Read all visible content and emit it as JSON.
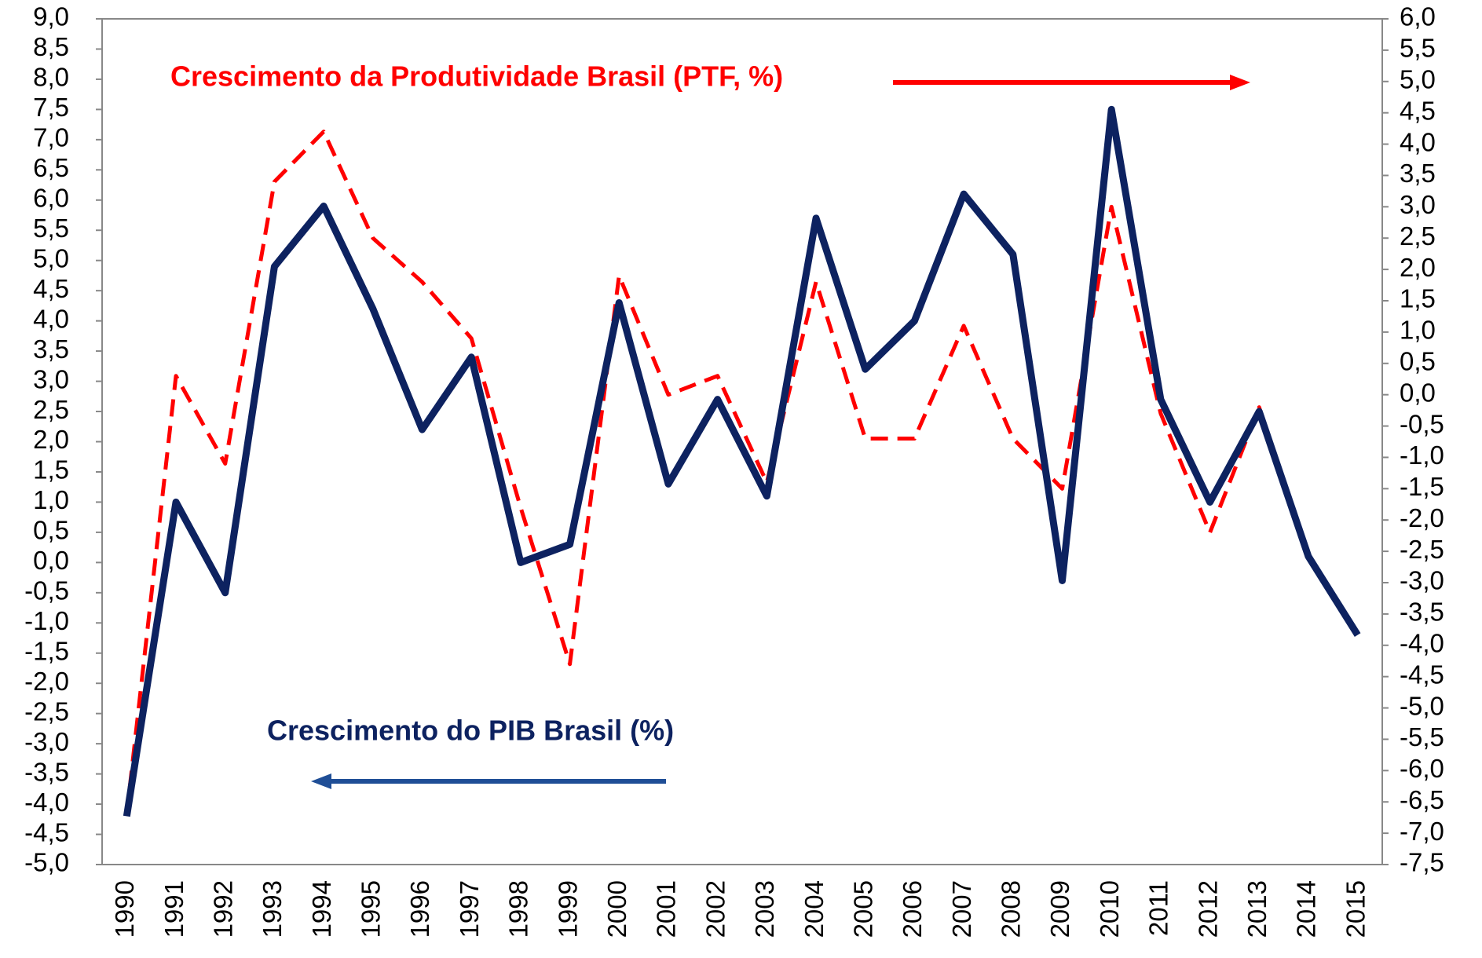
{
  "chart_data": {
    "type": "line",
    "annotations": [
      "Crescimento da Produtividade Brasil (PTF, %)",
      "Crescimento do PIB Brasil (%)"
    ],
    "categories": [
      "1990",
      "1991",
      "1992",
      "1993",
      "1994",
      "1995",
      "1996",
      "1997",
      "1998",
      "1999",
      "2000",
      "2001",
      "2002",
      "2003",
      "2004",
      "2005",
      "2006",
      "2007",
      "2008",
      "2009",
      "2010",
      "2011",
      "2012",
      "2013",
      "2014",
      "2015"
    ],
    "series": [
      {
        "name": "Crescimento do PIB Brasil (%)",
        "color": "#0d2260",
        "axis": "y",
        "dash": false,
        "values": [
          -4.2,
          1.0,
          -0.5,
          4.9,
          5.9,
          4.2,
          2.2,
          3.4,
          0.0,
          0.3,
          4.3,
          1.3,
          2.7,
          1.1,
          5.7,
          3.2,
          4.0,
          6.1,
          5.1,
          -0.3,
          7.5,
          2.7,
          1.0,
          2.5,
          0.1,
          -1.2
        ]
      },
      {
        "name": "Crescimento da Produtividade Brasil (PTF, %)",
        "color": "#ff0000",
        "axis": "y2",
        "dash": true,
        "values": [
          -6.7,
          0.3,
          -1.1,
          3.4,
          4.2,
          2.5,
          1.8,
          0.9,
          -1.8,
          -4.3,
          1.9,
          0.0,
          0.3,
          -1.4,
          1.8,
          -0.7,
          -0.7,
          1.1,
          -0.7,
          -1.5,
          3.0,
          -0.3,
          -2.2,
          -0.2,
          -2.6,
          null
        ]
      }
    ],
    "ylim": [
      -5,
      9
    ],
    "yticks": [
      {
        "value": 9,
        "label": "9,0"
      },
      {
        "value": 8.5,
        "label": "8,5"
      },
      {
        "value": 8,
        "label": "8,0"
      },
      {
        "value": 7.5,
        "label": "7,5"
      },
      {
        "value": 7,
        "label": "7,0"
      },
      {
        "value": 6.5,
        "label": "6,5"
      },
      {
        "value": 6,
        "label": "6,0"
      },
      {
        "value": 5.5,
        "label": "5,5"
      },
      {
        "value": 5,
        "label": "5,0"
      },
      {
        "value": 4.5,
        "label": "4,5"
      },
      {
        "value": 4,
        "label": "4,0"
      },
      {
        "value": 3.5,
        "label": "3,5"
      },
      {
        "value": 3,
        "label": "3,0"
      },
      {
        "value": 2.5,
        "label": "2,5"
      },
      {
        "value": 2,
        "label": "2,0"
      },
      {
        "value": 1.5,
        "label": "1,5"
      },
      {
        "value": 1,
        "label": "1,0"
      },
      {
        "value": 0.5,
        "label": "0,5"
      },
      {
        "value": 0,
        "label": "0,0"
      },
      {
        "value": -0.5,
        "label": "-0,5"
      },
      {
        "value": -1,
        "label": "-1,0"
      },
      {
        "value": -1.5,
        "label": "-1,5"
      },
      {
        "value": -2,
        "label": "-2,0"
      },
      {
        "value": -2.5,
        "label": "-2,5"
      },
      {
        "value": -3,
        "label": "-3,0"
      },
      {
        "value": -3.5,
        "label": "-3,5"
      },
      {
        "value": -4,
        "label": "-4,0"
      },
      {
        "value": -4.5,
        "label": "-4,5"
      },
      {
        "value": -5,
        "label": "-5,0"
      }
    ],
    "y2lim": [
      -7.5,
      6
    ],
    "y2ticks": [
      {
        "value": 6,
        "label": "6,0"
      },
      {
        "value": 5.5,
        "label": "5,5"
      },
      {
        "value": 5,
        "label": "5,0"
      },
      {
        "value": 4.5,
        "label": "4,5"
      },
      {
        "value": 4,
        "label": "4,0"
      },
      {
        "value": 3.5,
        "label": "3,5"
      },
      {
        "value": 3,
        "label": "3,0"
      },
      {
        "value": 2.5,
        "label": "2,5"
      },
      {
        "value": 2,
        "label": "2,0"
      },
      {
        "value": 1.5,
        "label": "1,5"
      },
      {
        "value": 1,
        "label": "1,0"
      },
      {
        "value": 0.5,
        "label": "0,5"
      },
      {
        "value": 0,
        "label": "0,0"
      },
      {
        "value": -0.5,
        "label": "-0,5"
      },
      {
        "value": -1,
        "label": "-1,0"
      },
      {
        "value": -1.5,
        "label": "-1,5"
      },
      {
        "value": -2,
        "label": "-2,0"
      },
      {
        "value": -2.5,
        "label": "-2,5"
      },
      {
        "value": -3,
        "label": "-3,0"
      },
      {
        "value": -3.5,
        "label": "-3,5"
      },
      {
        "value": -4,
        "label": "-4,0"
      },
      {
        "value": -4.5,
        "label": "-4,5"
      },
      {
        "value": -5,
        "label": "-5,0"
      },
      {
        "value": -5.5,
        "label": "-5,5"
      },
      {
        "value": -6,
        "label": "-6,0"
      },
      {
        "value": -6.5,
        "label": "-6,5"
      },
      {
        "value": -7,
        "label": "-7,0"
      },
      {
        "value": -7.5,
        "label": "-7,5"
      }
    ],
    "grid": false
  }
}
